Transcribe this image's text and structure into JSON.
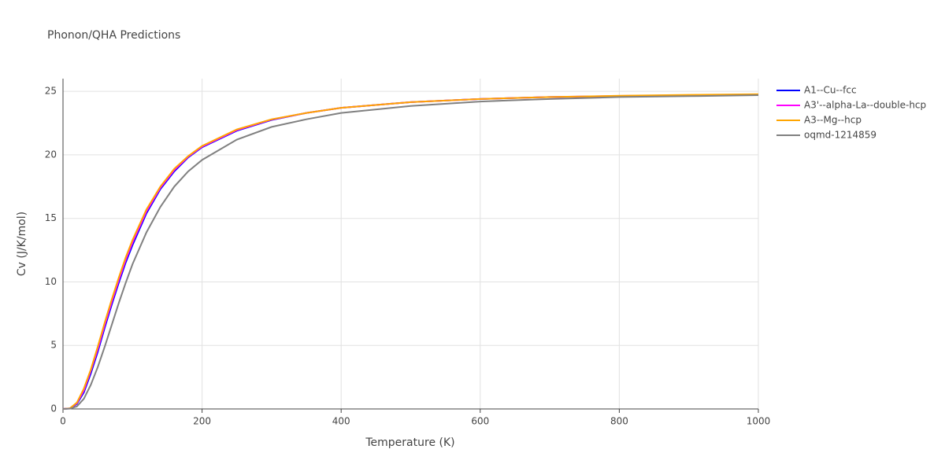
{
  "chart_data": {
    "type": "line",
    "title": "Phonon/QHA Predictions",
    "x_label": "Temperature (K)",
    "y_label": "Cv (J/K/mol)",
    "x": [
      0,
      10,
      20,
      30,
      40,
      50,
      60,
      70,
      80,
      90,
      100,
      120,
      140,
      160,
      180,
      200,
      250,
      300,
      350,
      400,
      500,
      600,
      700,
      800,
      900,
      1000
    ],
    "series": [
      {
        "name": "A1--Cu--fcc",
        "color": "#0000ff",
        "values": [
          0,
          0.04,
          0.4,
          1.3,
          2.8,
          4.5,
          6.4,
          8.2,
          9.9,
          11.5,
          12.9,
          15.4,
          17.3,
          18.7,
          19.8,
          20.6,
          21.9,
          22.75,
          23.3,
          23.7,
          24.15,
          24.4,
          24.55,
          24.62,
          24.68,
          24.72
        ]
      },
      {
        "name": "A3'--alpha-La--double-hcp",
        "color": "#ff00ff",
        "values": [
          0,
          0.05,
          0.45,
          1.45,
          3.0,
          4.7,
          6.6,
          8.4,
          10.1,
          11.7,
          13.1,
          15.55,
          17.4,
          18.8,
          19.85,
          20.65,
          21.95,
          22.78,
          23.3,
          23.7,
          24.15,
          24.4,
          24.55,
          24.64,
          24.7,
          24.74
        ]
      },
      {
        "name": "A3--Mg--hcp",
        "color": "#ffa500",
        "values": [
          0,
          0.05,
          0.5,
          1.6,
          3.1,
          4.9,
          6.8,
          8.6,
          10.3,
          11.9,
          13.3,
          15.7,
          17.5,
          18.9,
          19.9,
          20.7,
          22.0,
          22.8,
          23.3,
          23.7,
          24.15,
          24.4,
          24.55,
          24.65,
          24.72,
          24.78
        ]
      },
      {
        "name": "oqmd-1214859",
        "color": "#808080",
        "values": [
          0,
          0.02,
          0.2,
          0.8,
          1.9,
          3.3,
          4.9,
          6.6,
          8.3,
          9.9,
          11.4,
          13.9,
          15.9,
          17.5,
          18.7,
          19.6,
          21.2,
          22.2,
          22.8,
          23.3,
          23.85,
          24.2,
          24.4,
          24.55,
          24.62,
          24.7
        ]
      }
    ],
    "xlim": [
      0,
      1000
    ],
    "xticks": [
      0,
      200,
      400,
      600,
      800,
      1000
    ],
    "ylim": [
      0,
      26
    ],
    "yticks": [
      0,
      5,
      10,
      15,
      20,
      25
    ],
    "grid": true,
    "legend": "right"
  }
}
